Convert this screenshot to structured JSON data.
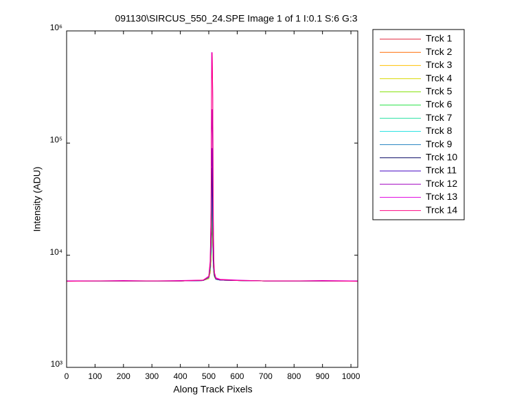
{
  "chart_data": {
    "type": "line",
    "title": "091130\\SIRCUS_550_24.SPE  Image 1 of 1  I:0.1  S:6  G:3",
    "x_label": "Along Track Pixels",
    "y_label": "Intensity (ADU)",
    "log_y": true,
    "grid": false,
    "legend": "outside-right",
    "xlim": [
      0,
      1024
    ],
    "xticks": [
      0,
      100,
      200,
      300,
      400,
      500,
      600,
      700,
      800,
      900,
      1000
    ],
    "ylim": [
      1000,
      1000000
    ],
    "yticks": [
      {
        "value": 1000,
        "label": "10³"
      },
      {
        "value": 10000,
        "label": "10⁴"
      },
      {
        "value": 100000,
        "label": "10⁵"
      },
      {
        "value": 1000000,
        "label": "10⁶"
      }
    ],
    "x": [
      0,
      100,
      200,
      300,
      400,
      480,
      500,
      505,
      508,
      510,
      512,
      514,
      516,
      518,
      520,
      525,
      540,
      600,
      700,
      800,
      900,
      1023
    ],
    "series": [
      {
        "name": "Trck 1",
        "color": "#e0203a",
        "values": [
          5900,
          5900,
          5900,
          5900,
          5900,
          5950,
          6200,
          7000,
          9000,
          15000,
          18000,
          12000,
          8000,
          6800,
          6400,
          6100,
          6000,
          5950,
          5900,
          5900,
          5900,
          5900
        ]
      },
      {
        "name": "Trck 2",
        "color": "#ff6a00",
        "values": [
          5900,
          5900,
          5900,
          5900,
          5900,
          5950,
          6200,
          7100,
          9200,
          16000,
          19000,
          12500,
          8100,
          6800,
          6400,
          6100,
          6000,
          5950,
          5900,
          5900,
          5900,
          5900
        ]
      },
      {
        "name": "Trck 3",
        "color": "#ffc000",
        "values": [
          5900,
          5900,
          5900,
          5900,
          5900,
          5950,
          6250,
          7200,
          9500,
          17000,
          21000,
          13000,
          8200,
          6900,
          6400,
          6100,
          6000,
          5950,
          5900,
          5900,
          5900,
          5900
        ]
      },
      {
        "name": "Trck 4",
        "color": "#d8d800",
        "values": [
          5900,
          5900,
          5900,
          5900,
          5900,
          5950,
          6250,
          7300,
          9800,
          18000,
          23000,
          14000,
          8300,
          6900,
          6400,
          6100,
          6000,
          5950,
          5900,
          5900,
          5900,
          5900
        ]
      },
      {
        "name": "Trck 5",
        "color": "#80e000",
        "values": [
          5900,
          5900,
          5900,
          5900,
          5900,
          5950,
          6300,
          7400,
          10000,
          20000,
          26000,
          15000,
          8400,
          7000,
          6500,
          6100,
          6000,
          5950,
          5900,
          5900,
          5900,
          5900
        ]
      },
      {
        "name": "Trck 6",
        "color": "#20e040",
        "values": [
          5900,
          5900,
          5900,
          5900,
          5900,
          5950,
          6300,
          7500,
          10500,
          22000,
          30000,
          16000,
          8500,
          7000,
          6500,
          6100,
          6000,
          5950,
          5900,
          5900,
          5900,
          5900
        ]
      },
      {
        "name": "Trck 7",
        "color": "#20e0a0",
        "values": [
          5900,
          5900,
          5900,
          5900,
          5900,
          5950,
          6300,
          7600,
          11000,
          25000,
          35000,
          17000,
          8600,
          7100,
          6500,
          6100,
          6000,
          5950,
          5900,
          5900,
          5900,
          5900
        ]
      },
      {
        "name": "Trck 8",
        "color": "#20e0e0",
        "values": [
          5900,
          5900,
          5900,
          5900,
          5900,
          5950,
          6350,
          7700,
          11500,
          28000,
          40000,
          18000,
          8700,
          7100,
          6500,
          6100,
          6000,
          5950,
          5900,
          5900,
          5900,
          5900
        ]
      },
      {
        "name": "Trck 9",
        "color": "#2080c0",
        "values": [
          5900,
          5900,
          5900,
          5900,
          5900,
          5950,
          6350,
          7800,
          12000,
          32000,
          48000,
          20000,
          8800,
          7200,
          6600,
          6100,
          6000,
          5950,
          5900,
          5900,
          5900,
          5900
        ]
      },
      {
        "name": "Trck 10",
        "color": "#000060",
        "values": [
          5900,
          5900,
          5900,
          5900,
          5900,
          5950,
          6400,
          8000,
          13000,
          40000,
          60000,
          24000,
          9000,
          7300,
          6600,
          6150,
          6000,
          5950,
          5900,
          5900,
          5900,
          5900
        ]
      },
      {
        "name": "Trck 11",
        "color": "#4000c0",
        "values": [
          5900,
          5900,
          5900,
          5900,
          5900,
          5950,
          6400,
          8200,
          15000,
          60000,
          90000,
          35000,
          10000,
          7500,
          6700,
          6150,
          6000,
          5950,
          5900,
          5900,
          5900,
          5900
        ]
      },
      {
        "name": "Trck 12",
        "color": "#a000c0",
        "values": [
          5900,
          5900,
          5900,
          5900,
          5900,
          5950,
          6450,
          8500,
          18000,
          120000,
          200000,
          80000,
          13000,
          7800,
          6800,
          6200,
          6050,
          5950,
          5900,
          5900,
          5900,
          5900
        ]
      },
      {
        "name": "Trck 13",
        "color": "#e000e0",
        "values": [
          5900,
          5900,
          5950,
          5900,
          5950,
          6000,
          6500,
          9000,
          25000,
          640000,
          640000,
          250000,
          20000,
          9000,
          7000,
          6300,
          6100,
          6000,
          5900,
          5900,
          5950,
          5900
        ]
      },
      {
        "name": "Trck 14",
        "color": "#ff0080",
        "values": [
          5850,
          5900,
          5900,
          5900,
          5900,
          6000,
          6400,
          8500,
          24000,
          300000,
          640000,
          250000,
          21000,
          8500,
          7000,
          6200,
          6050,
          5950,
          5900,
          5900,
          5900,
          5850
        ]
      }
    ]
  }
}
